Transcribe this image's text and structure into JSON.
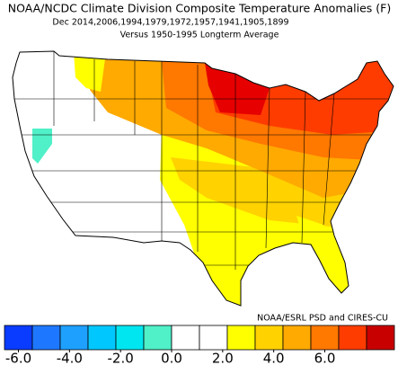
{
  "header": {
    "title": "NOAA/NCDC Climate Division Composite Temperature Anomalies (F)",
    "subtitle": "Dec  2014,2006,1994,1979,1972,1957,1941,1905,1899",
    "baseline": "Versus 1950-1995 Longterm Average"
  },
  "credit": "NOAA/ESRL PSD and CIRES-CU",
  "colorbar": {
    "colors": [
      "#0a3cff",
      "#1e78ff",
      "#1ea0ff",
      "#00c8ff",
      "#00e6f0",
      "#50f0c8",
      "#ffffff",
      "#ffffff",
      "#ffff00",
      "#ffd200",
      "#ffaa00",
      "#ff7800",
      "#ff3c00",
      "#c80000"
    ],
    "ticks": [
      {
        "value": -6,
        "label": "-6.0"
      },
      {
        "value": -4,
        "label": "-4.0"
      },
      {
        "value": -2,
        "label": "-2.0"
      },
      {
        "value": 0,
        "label": "0.0"
      },
      {
        "value": 2,
        "label": "2.0"
      },
      {
        "value": 4,
        "label": "4.0"
      },
      {
        "value": 6,
        "label": "6.0"
      }
    ]
  }
}
